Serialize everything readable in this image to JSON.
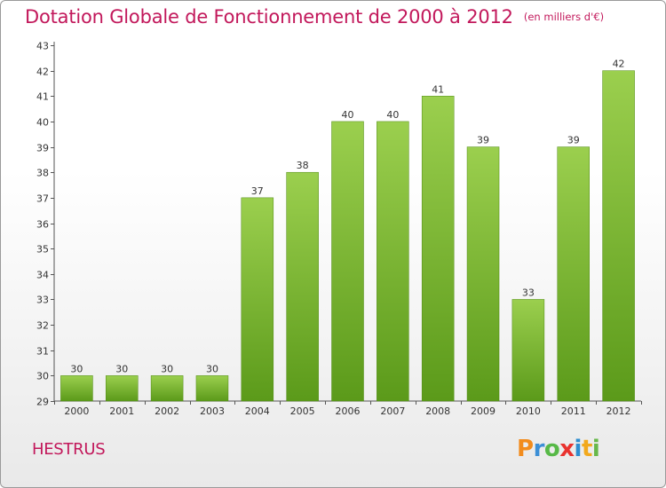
{
  "title": "Dotation Globale de Fonctionnement de 2000 à 2012",
  "subtitle": "(en milliers d'€)",
  "commune": "HESTRUS",
  "logo": [
    "P",
    "r",
    "o",
    "x",
    "i",
    "t",
    "i"
  ],
  "colors": {
    "title": "#c2185b",
    "bar_top": "#9bcf4e",
    "bar_bottom": "#5b9a1a"
  },
  "chart_data": {
    "type": "bar",
    "title": "Dotation Globale de Fonctionnement de 2000 à 2012",
    "subtitle": "(en milliers d'€)",
    "xlabel": "",
    "ylabel": "",
    "categories": [
      "2000",
      "2001",
      "2002",
      "2003",
      "2004",
      "2005",
      "2006",
      "2007",
      "2008",
      "2009",
      "2010",
      "2011",
      "2012"
    ],
    "values": [
      30,
      30,
      30,
      30,
      37,
      38,
      40,
      40,
      41,
      39,
      33,
      39,
      42
    ],
    "ylim": [
      29,
      43
    ],
    "yticks": [
      29,
      30,
      31,
      32,
      33,
      34,
      35,
      36,
      37,
      38,
      39,
      40,
      41,
      42,
      43
    ],
    "grid": false,
    "legend": "none"
  }
}
